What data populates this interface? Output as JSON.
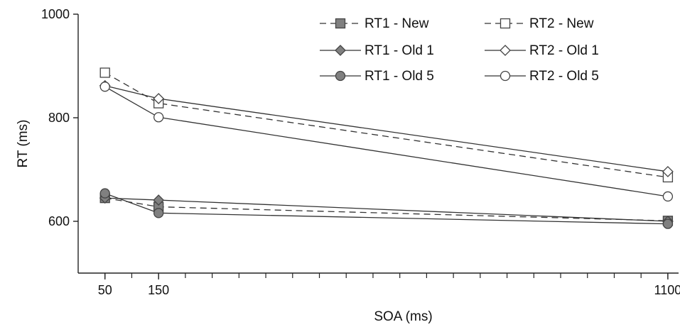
{
  "chart_data": {
    "type": "line",
    "title": "",
    "xlabel": "SOA (ms)",
    "ylabel": "RT (ms)",
    "x": [
      50,
      150,
      1100
    ],
    "xlim": [
      0,
      1120
    ],
    "ylim": [
      500,
      1000
    ],
    "x_ticks": [
      50,
      150,
      1100
    ],
    "x_minor_tick_step": 50,
    "y_ticks": [
      600,
      800,
      1000
    ],
    "grid": false,
    "legend_position": "top-right",
    "series": [
      {
        "name": "RT1 - New",
        "values": [
          645,
          628,
          601
        ],
        "marker": "square",
        "fill": "#808080",
        "dash": true
      },
      {
        "name": "RT1 - Old 1",
        "values": [
          645,
          641,
          600
        ],
        "marker": "diamond",
        "fill": "#808080",
        "dash": false
      },
      {
        "name": "RT1 - Old 5",
        "values": [
          654,
          616,
          595
        ],
        "marker": "circle",
        "fill": "#808080",
        "dash": false
      },
      {
        "name": "RT2 - New",
        "values": [
          887,
          828,
          685
        ],
        "marker": "square",
        "fill": "#ffffff",
        "dash": true
      },
      {
        "name": "RT2 - Old 1",
        "values": [
          862,
          837,
          696
        ],
        "marker": "diamond",
        "fill": "#ffffff",
        "dash": false
      },
      {
        "name": "RT2 - Old 5",
        "values": [
          860,
          801,
          648
        ],
        "marker": "circle",
        "fill": "#ffffff",
        "dash": false
      }
    ],
    "colors": {
      "line": "#333333",
      "filled_marker": "#808080",
      "open_marker": "#ffffff",
      "axis": "#222222"
    }
  }
}
